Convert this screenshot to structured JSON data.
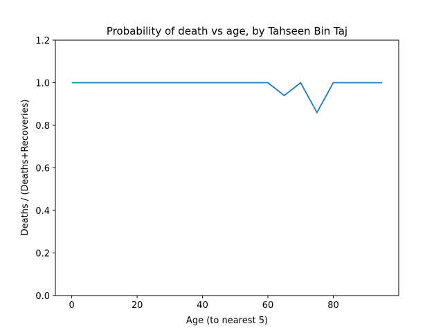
{
  "chart_data": {
    "type": "line",
    "title": "Probability of death vs age, by Tahseen Bin Taj",
    "xlabel": "Age (to nearest 5)",
    "ylabel": "Deaths / (Deaths+Recoveries)",
    "xlim": [
      -5,
      100
    ],
    "ylim": [
      0,
      1.2
    ],
    "xticks": [
      0,
      20,
      40,
      60,
      80
    ],
    "yticks": [
      0.0,
      0.2,
      0.4,
      0.6,
      0.8,
      1.0,
      1.2
    ],
    "xtick_labels": [
      "0",
      "20",
      "40",
      "60",
      "80"
    ],
    "ytick_labels": [
      "0.0",
      "0.2",
      "0.4",
      "0.6",
      "0.8",
      "1.0",
      "1.2"
    ],
    "grid": false,
    "series": [
      {
        "color": "#1f77b4",
        "x": [
          0,
          5,
          10,
          15,
          20,
          25,
          30,
          35,
          40,
          45,
          50,
          55,
          60,
          65,
          70,
          75,
          80,
          85,
          90,
          95
        ],
        "y": [
          1.0,
          1.0,
          1.0,
          1.0,
          1.0,
          1.0,
          1.0,
          1.0,
          1.0,
          1.0,
          1.0,
          1.0,
          1.0,
          0.94,
          1.0,
          0.86,
          1.0,
          1.0,
          1.0,
          1.0
        ]
      }
    ]
  }
}
